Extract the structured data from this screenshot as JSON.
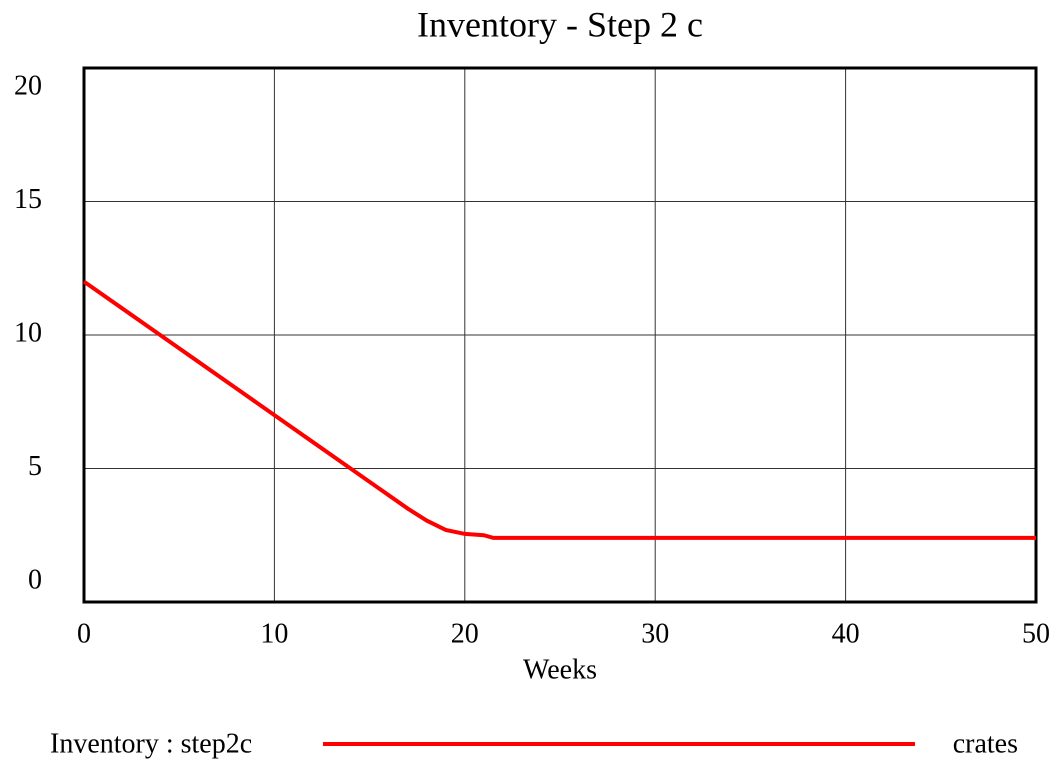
{
  "chart_data": {
    "type": "line",
    "title": "Inventory - Step 2 c",
    "x_label": "Weeks",
    "x": [
      0,
      2,
      4,
      6,
      8,
      10,
      12,
      14,
      16,
      17,
      18,
      19,
      20,
      21,
      21.5,
      25,
      30,
      35,
      40,
      45,
      50
    ],
    "series": [
      {
        "name": "Inventory : step2c",
        "color": "#ff0000",
        "values": [
          12,
          11,
          10,
          9,
          8,
          7,
          6,
          5,
          4,
          3.5,
          3.05,
          2.7,
          2.55,
          2.5,
          2.4,
          2.4,
          2.4,
          2.4,
          2.4,
          2.4,
          2.4
        ]
      }
    ],
    "units": "crates",
    "xlim": [
      0,
      50
    ],
    "xticks": [
      0,
      10,
      20,
      30,
      40,
      50
    ],
    "ylim": [
      0,
      20
    ],
    "yticks": [
      0,
      5,
      10,
      15,
      20
    ],
    "grid": true
  }
}
